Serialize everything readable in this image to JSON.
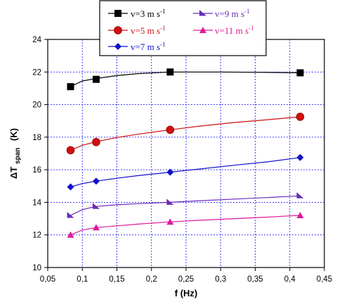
{
  "chart_data": {
    "type": "scatter",
    "xlabel": "f (Hz)",
    "ylabel": "ΔT span (K)",
    "ylabel_main": "ΔT",
    "ylabel_sub": "span",
    "ylabel_unit": "(K)",
    "xlim": [
      0.05,
      0.45
    ],
    "ylim": [
      10,
      24
    ],
    "x_ticks": [
      "0,05",
      "0,1",
      "0,15",
      "0,2",
      "0,25",
      "0,3",
      "0,35",
      "0,4",
      "0,45"
    ],
    "y_ticks": [
      "10",
      "12",
      "14",
      "16",
      "18",
      "20",
      "22",
      "24"
    ],
    "grid": true,
    "legend_position": "top",
    "series": [
      {
        "name": "v=3 m s-1",
        "label_main": "v=3 m s",
        "label_sup": "-1",
        "color": "#000000",
        "marker": "square",
        "x": [
          0.083,
          0.12,
          0.227,
          0.415
        ],
        "y": [
          21.1,
          21.55,
          22.0,
          21.95
        ],
        "fit": [
          [
            0.083,
            21.1
          ],
          [
            0.1,
            21.45
          ],
          [
            0.12,
            21.6
          ],
          [
            0.15,
            21.78
          ],
          [
            0.18,
            21.9
          ],
          [
            0.227,
            22.0
          ],
          [
            0.3,
            22.0
          ],
          [
            0.35,
            21.98
          ],
          [
            0.415,
            21.95
          ]
        ]
      },
      {
        "name": "v=5 m s-1",
        "label_main": "v=5 m s",
        "label_sup": "-1",
        "color": "#d01010",
        "marker": "circle",
        "x": [
          0.083,
          0.12,
          0.227,
          0.415
        ],
        "y": [
          17.2,
          17.7,
          18.45,
          19.25
        ],
        "fit": [
          [
            0.083,
            17.2
          ],
          [
            0.1,
            17.5
          ],
          [
            0.12,
            17.72
          ],
          [
            0.15,
            17.98
          ],
          [
            0.18,
            18.18
          ],
          [
            0.227,
            18.45
          ],
          [
            0.27,
            18.68
          ],
          [
            0.32,
            18.9
          ],
          [
            0.37,
            19.08
          ],
          [
            0.415,
            19.25
          ]
        ]
      },
      {
        "name": "v=7 m s-1",
        "label_main": "v=7 m s",
        "label_sup": "-1",
        "color": "#1010c8",
        "marker": "diamond",
        "x": [
          0.083,
          0.12,
          0.227,
          0.415
        ],
        "y": [
          14.95,
          15.3,
          15.85,
          16.75
        ],
        "fit": [
          [
            0.083,
            14.95
          ],
          [
            0.1,
            15.15
          ],
          [
            0.12,
            15.3
          ],
          [
            0.15,
            15.48
          ],
          [
            0.18,
            15.64
          ],
          [
            0.227,
            15.85
          ],
          [
            0.27,
            16.05
          ],
          [
            0.32,
            16.28
          ],
          [
            0.37,
            16.5
          ],
          [
            0.415,
            16.75
          ]
        ]
      },
      {
        "name": "v=9 m s-1",
        "label_main": "v=9 m s",
        "label_sup": "-1",
        "color": "#6a2bb8",
        "marker": "triangle-right",
        "x": [
          0.083,
          0.12,
          0.227,
          0.415
        ],
        "y": [
          13.2,
          13.75,
          14.0,
          14.4
        ],
        "fit": [
          [
            0.083,
            13.2
          ],
          [
            0.1,
            13.55
          ],
          [
            0.12,
            13.75
          ],
          [
            0.15,
            13.85
          ],
          [
            0.18,
            13.92
          ],
          [
            0.227,
            14.0
          ],
          [
            0.27,
            14.1
          ],
          [
            0.32,
            14.2
          ],
          [
            0.37,
            14.3
          ],
          [
            0.415,
            14.4
          ]
        ]
      },
      {
        "name": "v=11 m s-1",
        "label_main": "v=11 m s",
        "label_sup": "-1",
        "color": "#e0189a",
        "marker": "triangle",
        "x": [
          0.083,
          0.12,
          0.227,
          0.415
        ],
        "y": [
          12.0,
          12.45,
          12.8,
          13.2
        ],
        "fit": [
          [
            0.083,
            12.0
          ],
          [
            0.1,
            12.3
          ],
          [
            0.12,
            12.45
          ],
          [
            0.15,
            12.56
          ],
          [
            0.18,
            12.66
          ],
          [
            0.227,
            12.8
          ],
          [
            0.27,
            12.9
          ],
          [
            0.32,
            13.0
          ],
          [
            0.37,
            13.1
          ],
          [
            0.415,
            13.2
          ]
        ]
      }
    ]
  }
}
